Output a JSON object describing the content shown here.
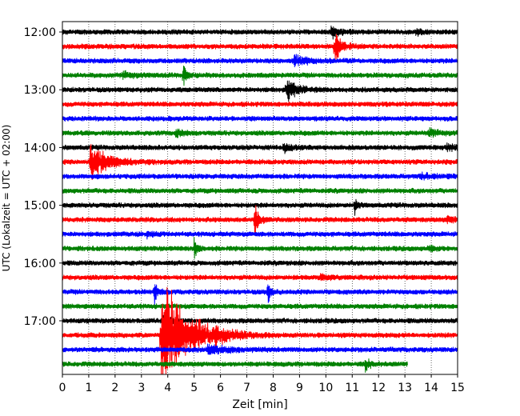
{
  "chart_data": {
    "type": "line",
    "title": "",
    "xlabel": "Zeit  [min]",
    "ylabel": "UTC (Lokalzeit = UTC + 02:00)",
    "xlim": [
      0,
      15
    ],
    "x_ticks": [
      0,
      1,
      2,
      3,
      4,
      5,
      6,
      7,
      8,
      9,
      10,
      11,
      12,
      13,
      14,
      15
    ],
    "x_tick_labels": [
      "0",
      "1",
      "2",
      "3",
      "4",
      "5",
      "6",
      "7",
      "8",
      "9",
      "10",
      "11",
      "12",
      "13",
      "14",
      "15"
    ],
    "grid": "vertical dotted lines at each minute",
    "row_interval_minutes": 15,
    "y_ticks": [
      {
        "row": 0,
        "label": "12:00"
      },
      {
        "row": 4,
        "label": "13:00"
      },
      {
        "row": 8,
        "label": "14:00"
      },
      {
        "row": 12,
        "label": "15:00"
      },
      {
        "row": 16,
        "label": "16:00"
      },
      {
        "row": 20,
        "label": "17:00"
      }
    ],
    "traces": [
      {
        "start": "12:00",
        "color": "#000000",
        "events": [
          {
            "t": 10.2,
            "amp": 0.5,
            "w": 0.6
          },
          {
            "t": 13.4,
            "amp": 0.3,
            "w": 0.4
          }
        ],
        "end": 15
      },
      {
        "start": "12:15",
        "color": "#ff0000",
        "events": [
          {
            "t": 10.35,
            "amp": 1.9,
            "w": 0.35
          }
        ],
        "end": 15
      },
      {
        "start": "12:30",
        "color": "#0000ff",
        "events": [
          {
            "t": 8.8,
            "amp": 0.45,
            "w": 0.8
          }
        ],
        "end": 15
      },
      {
        "start": "12:45",
        "color": "#008000",
        "events": [
          {
            "t": 2.3,
            "amp": 0.3,
            "w": 0.6
          },
          {
            "t": 4.6,
            "amp": 1.1,
            "w": 0.15
          }
        ],
        "end": 15
      },
      {
        "start": "13:00",
        "color": "#000000",
        "events": [
          {
            "t": 8.5,
            "amp": 1.1,
            "w": 0.6
          }
        ],
        "end": 15
      },
      {
        "start": "13:15",
        "color": "#ff0000",
        "events": [],
        "end": 15
      },
      {
        "start": "13:30",
        "color": "#0000ff",
        "events": [],
        "end": 15
      },
      {
        "start": "13:45",
        "color": "#008000",
        "events": [
          {
            "t": 4.3,
            "amp": 0.45,
            "w": 0.4
          },
          {
            "t": 13.9,
            "amp": 0.35,
            "w": 0.6
          }
        ],
        "end": 15
      },
      {
        "start": "14:00",
        "color": "#000000",
        "events": [
          {
            "t": 8.4,
            "amp": 0.55,
            "w": 0.4
          },
          {
            "t": 14.6,
            "amp": 0.35,
            "w": 0.6
          }
        ],
        "end": 15
      },
      {
        "start": "14:15",
        "color": "#ff0000",
        "events": [
          {
            "t": 1.05,
            "amp": 1.9,
            "w": 1.0
          }
        ],
        "end": 15
      },
      {
        "start": "14:30",
        "color": "#0000ff",
        "events": [
          {
            "t": 13.6,
            "amp": 0.3,
            "w": 0.6
          }
        ],
        "end": 15
      },
      {
        "start": "14:45",
        "color": "#008000",
        "events": [],
        "end": 15
      },
      {
        "start": "15:00",
        "color": "#000000",
        "events": [
          {
            "t": 11.1,
            "amp": 0.9,
            "w": 0.15
          }
        ],
        "end": 15
      },
      {
        "start": "15:15",
        "color": "#ff0000",
        "events": [
          {
            "t": 7.3,
            "amp": 2.2,
            "w": 0.2
          },
          {
            "t": 14.6,
            "amp": 0.4,
            "w": 0.5
          }
        ],
        "end": 15
      },
      {
        "start": "15:30",
        "color": "#0000ff",
        "events": [
          {
            "t": 3.2,
            "amp": 0.3,
            "w": 0.3
          }
        ],
        "end": 15
      },
      {
        "start": "15:45",
        "color": "#008000",
        "events": [
          {
            "t": 5.0,
            "amp": 1.2,
            "w": 0.15
          },
          {
            "t": 13.9,
            "amp": 0.35,
            "w": 0.3
          }
        ],
        "end": 15
      },
      {
        "start": "16:00",
        "color": "#000000",
        "events": [],
        "end": 15
      },
      {
        "start": "16:15",
        "color": "#ff0000",
        "events": [
          {
            "t": 9.8,
            "amp": 0.3,
            "w": 0.4
          }
        ],
        "end": 15
      },
      {
        "start": "16:30",
        "color": "#0000ff",
        "events": [
          {
            "t": 3.5,
            "amp": 1.0,
            "w": 0.2
          },
          {
            "t": 7.8,
            "amp": 1.4,
            "w": 0.12
          }
        ],
        "end": 15
      },
      {
        "start": "16:45",
        "color": "#008000",
        "events": [],
        "end": 15
      },
      {
        "start": "17:00",
        "color": "#000000",
        "events": [
          {
            "t": 3.8,
            "amp": 0.5,
            "w": 0.4
          }
        ],
        "end": 15
      },
      {
        "start": "17:15",
        "color": "#ff0000",
        "events": [
          {
            "t": 3.75,
            "amp": 6.0,
            "w": 1.5
          },
          {
            "t": 5.8,
            "amp": 0.5,
            "w": 0.8
          }
        ],
        "end": 15
      },
      {
        "start": "17:30",
        "color": "#0000ff",
        "events": [
          {
            "t": 5.5,
            "amp": 0.4,
            "w": 1.2
          }
        ],
        "end": 15
      },
      {
        "start": "17:45",
        "color": "#008000",
        "events": [
          {
            "t": 11.5,
            "amp": 0.8,
            "w": 0.2
          }
        ],
        "end": 13.1
      }
    ]
  }
}
